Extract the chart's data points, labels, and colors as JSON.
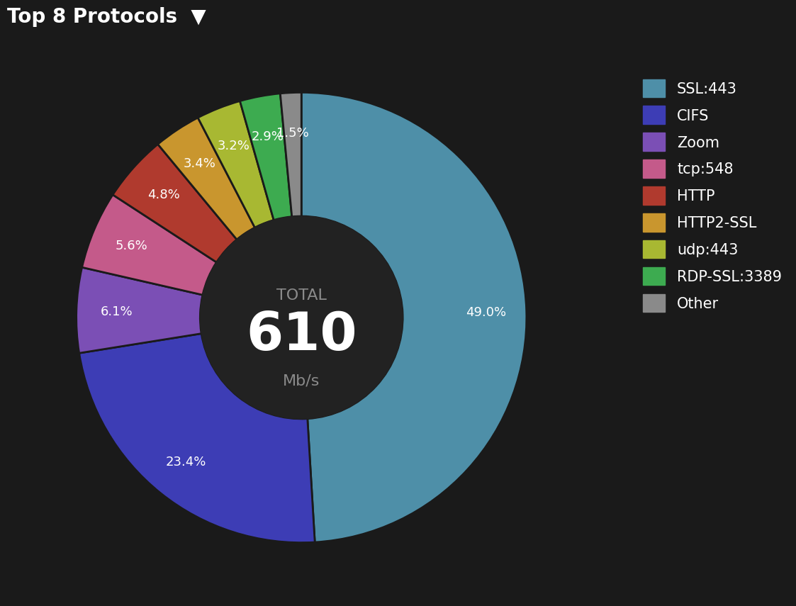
{
  "title": "Top 8 Protocols",
  "total_value": "610",
  "total_unit": "Mb/s",
  "background_color": "#1a1a1a",
  "labels": [
    "SSL:443",
    "CIFS",
    "Zoom",
    "tcp:548",
    "HTTP",
    "HTTP2-SSL",
    "udp:443",
    "RDP-SSL:3389",
    "Other"
  ],
  "percentages": [
    49.0,
    23.4,
    6.1,
    5.6,
    4.8,
    3.4,
    3.2,
    2.9,
    1.5
  ],
  "colors": [
    "#4e8fa8",
    "#3d3db5",
    "#7b4fb5",
    "#c45a8a",
    "#b03a2e",
    "#c9962e",
    "#a8b832",
    "#3dab50",
    "#8a8a8a"
  ],
  "pct_label_color": "#ffffff",
  "center_label_total_color": "#8a8a8a",
  "center_label_value_color": "#ffffff",
  "center_label_unit_color": "#8a8a8a",
  "legend_text_color": "#ffffff",
  "title_color": "#ffffff",
  "wedge_edge_color": "#1a1a1a"
}
